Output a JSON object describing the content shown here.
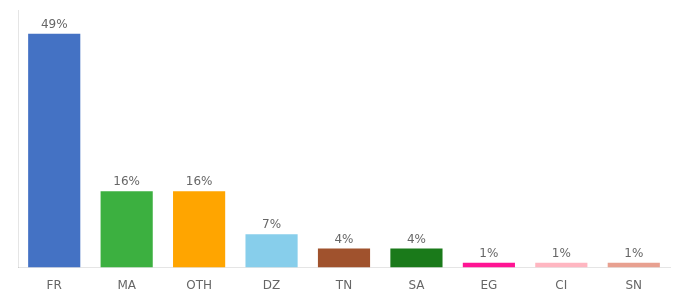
{
  "chart_data": {
    "type": "bar",
    "categories": [
      "FR",
      "MA",
      "OTH",
      "DZ",
      "TN",
      "SA",
      "EG",
      "CI",
      "SN"
    ],
    "values": [
      49,
      16,
      16,
      7,
      4,
      4,
      1,
      1,
      1
    ],
    "value_labels": [
      "49%",
      "16%",
      "16%",
      "7%",
      "4%",
      "4%",
      "1%",
      "1%",
      "1%"
    ],
    "colors": [
      "#4472c4",
      "#3cb040",
      "#ffa500",
      "#87ceeb",
      "#a0522d",
      "#1a7a1a",
      "#ff1493",
      "#ffb6c1",
      "#e8a090"
    ],
    "ylim": [
      0,
      54
    ],
    "grid": false,
    "data_labels": true,
    "tick_labels": "x"
  }
}
